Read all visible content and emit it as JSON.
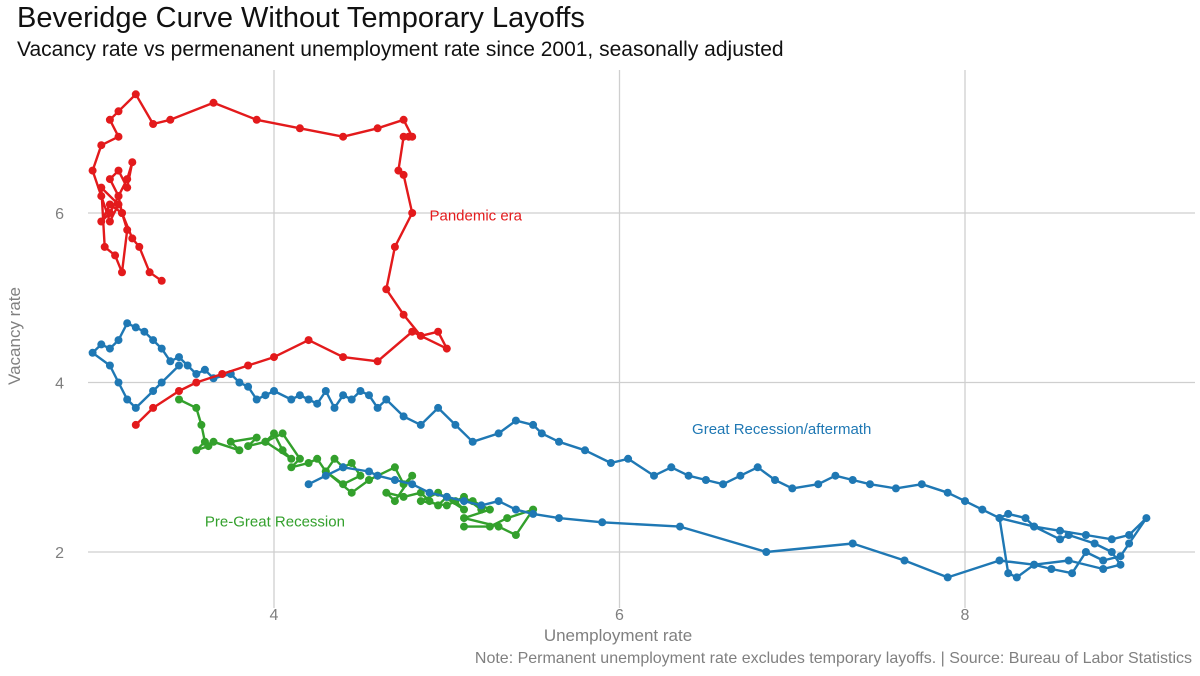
{
  "chart_data": {
    "type": "line",
    "title": "Beveridge Curve Without Temporary Layoffs",
    "subtitle": "Vacancy rate vs permenanent unemployment rate since 2001, seasonally adjusted",
    "caption": "Note: Permanent unemployment rate excludes temporary layoffs. | Source: Bureau of Labor Statistics",
    "xlabel": "Unemployment rate",
    "ylabel": "Vacancy rate",
    "xlim": [
      2.9,
      9.2
    ],
    "ylim": [
      1.5,
      7.6
    ],
    "xticks": [
      4,
      6,
      8
    ],
    "yticks": [
      2,
      4,
      6
    ],
    "grid": true,
    "legend": "none",
    "annotations": [
      {
        "text": "Pandemic era",
        "x": 4.9,
        "y": 5.97,
        "color": "#e31a1c"
      },
      {
        "text": "Great Recession/aftermath",
        "x": 6.42,
        "y": 3.45,
        "color": "#1f78b4"
      },
      {
        "text": "Pre-Great Recession",
        "x": 3.6,
        "y": 2.36,
        "color": "#33a02c"
      }
    ],
    "series": [
      {
        "color": "#33a02c",
        "x": [
          3.45,
          3.55,
          3.58,
          3.6,
          3.55,
          3.62,
          3.65,
          3.8,
          3.75,
          3.9,
          3.85,
          3.95,
          4.0,
          4.05,
          4.1,
          3.95,
          4.05,
          4.15,
          4.1,
          4.2,
          4.25,
          4.3,
          4.35,
          4.4,
          4.45,
          4.5,
          4.4,
          4.3,
          4.45,
          4.55,
          4.6,
          4.7,
          4.75,
          4.8,
          4.7,
          4.65,
          4.75,
          4.85,
          4.9,
          4.95,
          5.0,
          5.05,
          5.1,
          4.95,
          4.85,
          5.0,
          5.1,
          5.2,
          5.15,
          5.25,
          5.1,
          5.3,
          5.4,
          5.5,
          5.35,
          5.25,
          5.1
        ],
        "y": [
          3.8,
          3.7,
          3.5,
          3.3,
          3.2,
          3.25,
          3.3,
          3.2,
          3.3,
          3.35,
          3.25,
          3.3,
          3.4,
          3.2,
          3.1,
          3.3,
          3.4,
          3.1,
          3.0,
          3.05,
          3.1,
          2.95,
          3.1,
          3.0,
          3.05,
          2.9,
          2.8,
          2.95,
          2.7,
          2.85,
          2.9,
          3.0,
          2.8,
          2.9,
          2.6,
          2.7,
          2.65,
          2.7,
          2.6,
          2.55,
          2.65,
          2.6,
          2.5,
          2.7,
          2.6,
          2.55,
          2.65,
          2.5,
          2.6,
          2.5,
          2.4,
          2.3,
          2.2,
          2.5,
          2.4,
          2.3,
          2.3
        ]
      },
      {
        "color": "#1f78b4",
        "x": [
          4.2,
          4.3,
          4.4,
          4.55,
          4.6,
          4.7,
          4.8,
          4.9,
          5.0,
          5.1,
          5.2,
          5.3,
          5.4,
          5.5,
          5.65,
          5.9,
          6.35,
          6.85,
          7.35,
          7.65,
          7.9,
          8.2,
          8.4,
          8.6,
          8.8,
          8.9,
          8.85,
          8.75,
          8.6,
          8.55,
          8.4,
          8.35,
          8.25,
          8.2,
          8.4,
          8.55,
          8.7,
          8.85,
          8.95,
          9.05,
          8.95,
          8.9,
          8.8,
          8.7,
          8.62,
          8.5,
          8.4,
          8.3,
          8.25,
          8.2,
          8.1,
          8.0,
          7.9,
          7.75,
          7.6,
          7.45,
          7.35,
          7.25,
          7.15,
          7.0,
          6.9,
          6.8,
          6.7,
          6.6,
          6.5,
          6.4,
          6.3,
          6.2,
          6.05,
          5.95,
          5.8,
          5.65,
          5.55,
          5.5,
          5.4,
          5.3,
          5.15,
          5.05,
          4.95,
          4.85,
          4.75,
          4.65,
          4.6,
          4.55,
          4.5,
          4.45,
          4.4,
          4.35,
          4.3,
          4.25,
          4.2,
          4.15,
          4.1,
          4.0,
          3.95,
          3.9,
          3.85,
          3.8,
          3.75,
          3.65,
          3.6,
          3.55,
          3.5,
          3.45,
          3.4,
          3.35,
          3.3,
          3.25,
          3.2,
          3.15,
          3.1,
          3.05,
          3.0,
          2.95,
          3.05,
          3.1,
          3.15,
          3.2,
          3.3,
          3.35,
          3.45
        ],
        "y": [
          2.8,
          2.9,
          3.0,
          2.95,
          2.9,
          2.85,
          2.8,
          2.7,
          2.65,
          2.6,
          2.55,
          2.6,
          2.5,
          2.45,
          2.4,
          2.35,
          2.3,
          2.0,
          2.1,
          1.9,
          1.7,
          1.9,
          1.85,
          1.9,
          1.8,
          1.85,
          2.0,
          2.1,
          2.2,
          2.15,
          2.3,
          2.4,
          2.45,
          2.4,
          2.3,
          2.25,
          2.2,
          2.15,
          2.2,
          2.4,
          2.1,
          1.95,
          1.9,
          2.0,
          1.75,
          1.8,
          1.85,
          1.7,
          1.75,
          2.4,
          2.5,
          2.6,
          2.7,
          2.8,
          2.75,
          2.8,
          2.85,
          2.9,
          2.8,
          2.75,
          2.85,
          3.0,
          2.9,
          2.8,
          2.85,
          2.9,
          3.0,
          2.9,
          3.1,
          3.05,
          3.2,
          3.3,
          3.4,
          3.5,
          3.55,
          3.4,
          3.3,
          3.5,
          3.7,
          3.5,
          3.6,
          3.8,
          3.7,
          3.85,
          3.9,
          3.8,
          3.85,
          3.7,
          3.9,
          3.75,
          3.8,
          3.85,
          3.8,
          3.9,
          3.85,
          3.8,
          3.95,
          4.0,
          4.1,
          4.05,
          4.15,
          4.1,
          4.2,
          4.3,
          4.25,
          4.4,
          4.5,
          4.6,
          4.65,
          4.7,
          4.5,
          4.4,
          4.45,
          4.35,
          4.2,
          4.0,
          3.8,
          3.7,
          3.9,
          4.0,
          4.2
        ]
      },
      {
        "color": "#e31a1c",
        "x": [
          3.2,
          3.3,
          3.45,
          3.55,
          3.7,
          3.85,
          4.0,
          4.2,
          4.4,
          4.6,
          4.8,
          5.0,
          4.95,
          4.85,
          4.75,
          4.65,
          4.7,
          4.8,
          4.75,
          4.72,
          4.75,
          4.78,
          4.8,
          4.75,
          4.6,
          4.4,
          4.15,
          3.9,
          3.65,
          3.4,
          3.3,
          3.2,
          3.1,
          3.05,
          3.1,
          3.0,
          2.95,
          3.0,
          3.05,
          3.1,
          3.0,
          3.02,
          3.08,
          3.12,
          3.15,
          3.12,
          3.1,
          3.05,
          3.1,
          3.15,
          3.18,
          3.15,
          3.1,
          3.05,
          3.0,
          3.05,
          3.12,
          3.18,
          3.22,
          3.28,
          3.35
        ],
        "y": [
          3.5,
          3.7,
          3.9,
          4.0,
          4.1,
          4.2,
          4.3,
          4.5,
          4.3,
          4.25,
          4.6,
          4.4,
          4.6,
          4.55,
          4.8,
          5.1,
          5.6,
          6.0,
          6.45,
          6.5,
          6.9,
          6.9,
          6.9,
          7.1,
          7.0,
          6.9,
          7.0,
          7.1,
          7.3,
          7.1,
          7.05,
          7.4,
          7.2,
          7.1,
          6.9,
          6.8,
          6.5,
          6.2,
          5.9,
          6.1,
          6.3,
          5.6,
          5.5,
          5.3,
          5.8,
          6.0,
          6.2,
          6.4,
          6.5,
          6.3,
          6.6,
          6.4,
          6.2,
          6.0,
          5.9,
          6.1,
          6.0,
          5.7,
          5.6,
          5.3,
          5.2
        ]
      }
    ]
  }
}
